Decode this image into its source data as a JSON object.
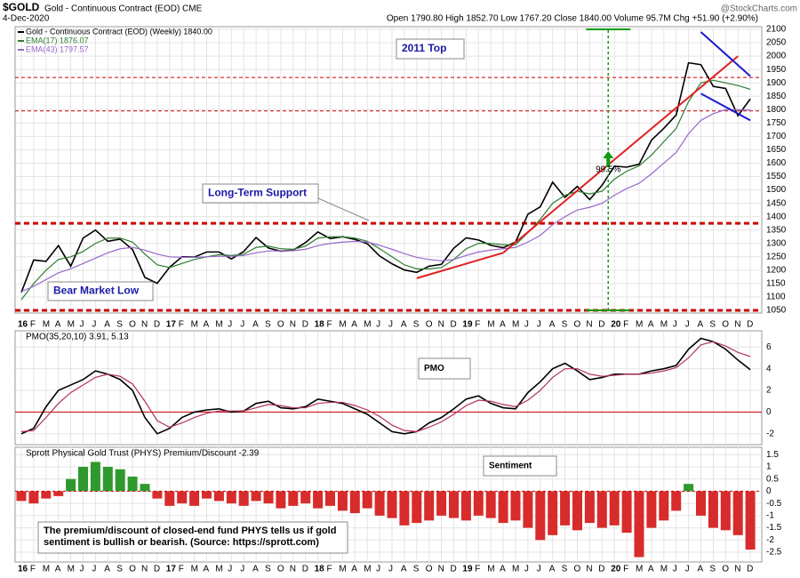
{
  "header": {
    "symbol": "$GOLD",
    "name": "Gold - Continuous Contract (EOD) CME",
    "date": "4-Dec-2020",
    "quote": "Open 1790.80 High 1852.70 Low 1767.20 Close 1840.00 Volume 95.7M Chg +51.90 (+2.90%)",
    "site": "@StockCharts.com"
  },
  "chart_data": [
    {
      "type": "line",
      "legend": [
        "Gold - Continuous Contract (EOD) (Weekly) 1840.00",
        "EMA(17) 1876.07",
        "EMA(43) 1797.57"
      ],
      "categories": [
        "16",
        "F",
        "M",
        "A",
        "M",
        "J",
        "J",
        "A",
        "S",
        "O",
        "N",
        "D",
        "17",
        "F",
        "M",
        "A",
        "M",
        "J",
        "J",
        "A",
        "S",
        "O",
        "N",
        "D",
        "18",
        "F",
        "M",
        "A",
        "M",
        "J",
        "J",
        "A",
        "S",
        "O",
        "N",
        "D",
        "19",
        "F",
        "M",
        "A",
        "M",
        "J",
        "J",
        "A",
        "S",
        "O",
        "N",
        "D",
        "20",
        "F",
        "M",
        "A",
        "M",
        "J",
        "J",
        "A",
        "S",
        "O",
        "N",
        "D"
      ],
      "series": [
        {
          "name": "Gold",
          "color": "#000000",
          "values": [
            1117,
            1238,
            1233,
            1292,
            1215,
            1320,
            1350,
            1308,
            1316,
            1277,
            1173,
            1151,
            1211,
            1250,
            1249,
            1268,
            1268,
            1242,
            1270,
            1322,
            1283,
            1271,
            1275,
            1303,
            1343,
            1318,
            1325,
            1315,
            1299,
            1253,
            1224,
            1201,
            1192,
            1215,
            1222,
            1282,
            1321,
            1313,
            1293,
            1284,
            1305,
            1409,
            1437,
            1529,
            1472,
            1513,
            1464,
            1517,
            1589,
            1585,
            1596,
            1686,
            1730,
            1780,
            1975,
            1968,
            1887,
            1879,
            1777,
            1840
          ]
        },
        {
          "name": "EMA(17)",
          "color": "#2e7d32",
          "values": [
            1090,
            1150,
            1200,
            1240,
            1250,
            1270,
            1300,
            1320,
            1320,
            1305,
            1260,
            1220,
            1210,
            1225,
            1240,
            1250,
            1258,
            1255,
            1260,
            1285,
            1290,
            1280,
            1278,
            1290,
            1320,
            1325,
            1325,
            1320,
            1308,
            1280,
            1250,
            1220,
            1205,
            1205,
            1210,
            1240,
            1280,
            1300,
            1300,
            1295,
            1295,
            1340,
            1390,
            1450,
            1480,
            1495,
            1485,
            1495,
            1540,
            1570,
            1590,
            1630,
            1680,
            1730,
            1830,
            1900,
            1910,
            1900,
            1890,
            1876.07
          ]
        },
        {
          "name": "EMA(43)",
          "color": "#9966cc",
          "values": [
            1120,
            1140,
            1165,
            1190,
            1205,
            1225,
            1245,
            1265,
            1280,
            1285,
            1275,
            1260,
            1250,
            1248,
            1248,
            1250,
            1252,
            1252,
            1255,
            1265,
            1272,
            1272,
            1273,
            1278,
            1292,
            1300,
            1305,
            1308,
            1305,
            1293,
            1278,
            1262,
            1248,
            1240,
            1235,
            1240,
            1255,
            1268,
            1275,
            1280,
            1285,
            1305,
            1330,
            1370,
            1400,
            1425,
            1435,
            1450,
            1480,
            1505,
            1525,
            1560,
            1600,
            1640,
            1710,
            1760,
            1785,
            1800,
            1800,
            1797.57
          ]
        }
      ],
      "ylim": [
        1040,
        2110
      ],
      "yticks": [
        1050,
        1100,
        1150,
        1200,
        1250,
        1300,
        1350,
        1400,
        1450,
        1500,
        1550,
        1600,
        1650,
        1700,
        1750,
        1800,
        1850,
        1900,
        1950,
        2000,
        2050,
        2100
      ],
      "hlines": [
        {
          "value": 1920,
          "color": "#cc0000",
          "width": 1
        },
        {
          "value": 1795,
          "color": "#cc0000",
          "width": 1
        },
        {
          "value": 1375,
          "color": "#cc0000",
          "width": 3
        },
        {
          "value": 1050,
          "color": "#cc0000",
          "width": 3
        }
      ],
      "trendlines": [
        {
          "x": [
            32,
            39
          ],
          "y": [
            1170,
            1265
          ],
          "color": "#e02020"
        },
        {
          "x": [
            39,
            58
          ],
          "y": [
            1265,
            2000
          ],
          "color": "#e02020"
        },
        {
          "x": [
            55,
            59
          ],
          "y": [
            2090,
            1925
          ],
          "color": "#1a1ad0"
        },
        {
          "x": [
            55,
            59
          ],
          "y": [
            1860,
            1760
          ],
          "color": "#1a1ad0"
        }
      ],
      "measure": {
        "x": 47.5,
        "y": [
          1050,
          2100
        ],
        "color": "#119911",
        "label": "99.5%"
      },
      "annotations": [
        "2011 Top",
        "Long-Term Support",
        "Bear Market Low"
      ]
    },
    {
      "type": "line",
      "legend": "PMO(35,20,10) 3.91, 5.13",
      "annotation": "PMO",
      "series": [
        {
          "name": "PMO",
          "color": "#000000",
          "values": [
            -2,
            -1.5,
            0.5,
            2,
            2.5,
            3,
            3.8,
            3.5,
            3,
            2,
            -0.5,
            -2,
            -1.5,
            -0.5,
            0,
            0.2,
            0.3,
            0,
            0.1,
            0.8,
            1,
            0.4,
            0.3,
            0.5,
            1.2,
            1,
            0.8,
            0.3,
            -0.2,
            -1,
            -1.8,
            -2,
            -1.8,
            -1,
            -0.5,
            0.3,
            1.2,
            1.5,
            0.8,
            0.4,
            0.3,
            1.8,
            2.8,
            4,
            4.5,
            3.8,
            3,
            3.2,
            3.5,
            3.5,
            3.5,
            3.8,
            4,
            4.3,
            5.8,
            6.8,
            6.5,
            5.8,
            4.8,
            3.91
          ]
        },
        {
          "name": "Signal",
          "color": "#b03060",
          "values": [
            -1.8,
            -1.7,
            -0.5,
            0.8,
            1.8,
            2.5,
            3.2,
            3.5,
            3.3,
            2.6,
            1,
            -0.8,
            -1.4,
            -1,
            -0.5,
            -0.1,
            0.1,
            0.1,
            0.1,
            0.4,
            0.7,
            0.6,
            0.4,
            0.4,
            0.8,
            0.9,
            0.9,
            0.6,
            0.2,
            -0.4,
            -1.2,
            -1.7,
            -1.8,
            -1.4,
            -0.9,
            -0.2,
            0.6,
            1.1,
            1,
            0.7,
            0.5,
            1.1,
            2,
            3.2,
            4,
            4,
            3.5,
            3.3,
            3.4,
            3.5,
            3.5,
            3.6,
            3.8,
            4.1,
            5,
            6.2,
            6.5,
            6.1,
            5.5,
            5.13
          ]
        }
      ],
      "ylim": [
        -3,
        7.5
      ],
      "yticks": [
        -2,
        0,
        2,
        4,
        6
      ],
      "zero_color": "#cc0000"
    },
    {
      "type": "bar",
      "legend": "Sprott Physical Gold Trust (PHYS) Premium/Discount -2.39",
      "annotation": "Sentiment",
      "note": [
        "The premium/discount of closed-end fund PHYS tells us if gold",
        "sentiment is bullish or bearish. (Source: https://sprott.com)"
      ],
      "values": [
        -0.4,
        -0.5,
        -0.3,
        -0.2,
        0.5,
        1,
        1.2,
        1,
        0.9,
        0.6,
        0.3,
        -0.3,
        -0.6,
        -0.5,
        -0.6,
        -0.3,
        -0.4,
        -0.5,
        -0.6,
        -0.4,
        -0.5,
        -0.7,
        -0.6,
        -0.5,
        -0.7,
        -0.6,
        -0.8,
        -0.9,
        -0.7,
        -1,
        -1.1,
        -1.4,
        -1.3,
        -1.2,
        -1,
        -1.1,
        -1.2,
        -1,
        -1.1,
        -1.3,
        -1.2,
        -1.5,
        -2,
        -1.8,
        -1.4,
        -1.6,
        -1.3,
        -1.5,
        -1.4,
        -1.7,
        -2.7,
        -1.5,
        -1.2,
        -0.8,
        0.3,
        -1,
        -1.5,
        -1.6,
        -1.8,
        -2.39
      ],
      "pos_color": "#2e9a2e",
      "neg_color": "#d82b2b",
      "ylim": [
        -2.9,
        1.8
      ],
      "yticks": [
        -2.5,
        -2,
        -1.5,
        -1,
        -0.5,
        0,
        0.5,
        1,
        1.5
      ]
    }
  ]
}
